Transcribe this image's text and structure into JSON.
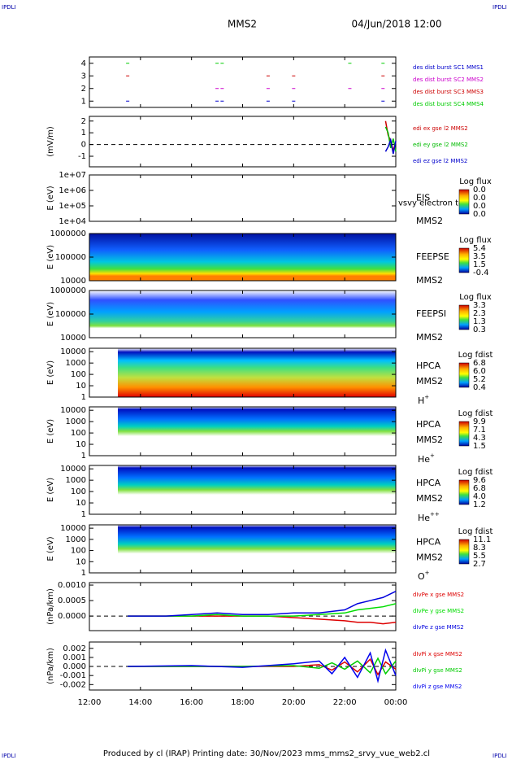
{
  "header": {
    "corner": "IPDLI",
    "mission": "MMS2",
    "date": "04/Jun/2018 12:00"
  },
  "footer": "Produced by cl (IRAP)   Printing date: 30/Nov/2023   mms_mms2_srvy_vue_web2.cl",
  "xlim": [
    12,
    24
  ],
  "xticks": [
    {
      "value": 12,
      "label": "12:00"
    },
    {
      "value": 14,
      "label": "14:00"
    },
    {
      "value": 16,
      "label": "16:00"
    },
    {
      "value": 18,
      "label": "18:00"
    },
    {
      "value": 20,
      "label": "20:00"
    },
    {
      "value": 22,
      "label": "22:00"
    },
    {
      "value": 24,
      "label": "00:00"
    }
  ],
  "chart_data": [
    {
      "type": "events",
      "ylim": [
        0.5,
        4.5
      ],
      "yticks": [
        1,
        2,
        3,
        4
      ],
      "series": [
        {
          "name": "des dist burst SC1 MMS1",
          "color": "#0000cc",
          "row": 1,
          "x": [
            13.5,
            17,
            17.2,
            19,
            20,
            23.5
          ]
        },
        {
          "name": "des dist burst SC2 MMS2",
          "color": "#cc00cc",
          "row": 2,
          "x": [
            17,
            17.2,
            19,
            20,
            22.2,
            23.5
          ]
        },
        {
          "name": "des dist burst SC3 MMS3",
          "color": "#cc0000",
          "row": 3,
          "x": [
            13.5,
            19,
            20,
            23.5
          ]
        },
        {
          "name": "des dist burst SC4 MMS4",
          "color": "#00cc00",
          "row": 4,
          "x": [
            13.5,
            17,
            17.2,
            22.2,
            23.5
          ]
        }
      ]
    },
    {
      "type": "line",
      "ylabel": "(mV/m)",
      "ylim": [
        -1.9,
        2.4
      ],
      "yticks": [
        -1,
        0,
        1,
        2
      ],
      "x": [
        23.6,
        23.7,
        23.8,
        23.9,
        24
      ],
      "series": [
        {
          "name": "edi ex gse l2 MMS2",
          "color": "#cc0000",
          "values": [
            2,
            0.8,
            0.3,
            -0.5,
            0.2
          ]
        },
        {
          "name": "edi ey gse l2 MMS2",
          "color": "#00bb00",
          "values": [
            1.5,
            1,
            -0.3,
            0.5,
            -0.6
          ]
        },
        {
          "name": "edi ez gse l2 MMS2",
          "color": "#0000cc",
          "values": [
            -0.6,
            -0.2,
            0.4,
            -0.8,
            0.3
          ]
        }
      ]
    },
    {
      "type": "spectrogram",
      "ylabel": "E (eV)",
      "log": true,
      "ylim": [
        10000,
        10000000
      ],
      "yticks": [
        {
          "value": 10000,
          "label": "1e+04"
        },
        {
          "value": 100000,
          "label": "1e+05"
        },
        {
          "value": 1000000,
          "label": "1e+06"
        },
        {
          "value": 10000000,
          "label": "1e+07"
        }
      ],
      "instrument": "EIS",
      "overlay": "vsvy electron to",
      "probe": "MMS2",
      "cbar_title": "Log flux",
      "cbar": [
        "0.0",
        "0.0",
        "0.0",
        "0.0"
      ],
      "fill": "none"
    },
    {
      "type": "spectrogram",
      "ylabel": "E (eV)",
      "log": true,
      "ylim": [
        10000,
        1000000
      ],
      "yticks": [
        10000,
        100000,
        1000000
      ],
      "instrument": "FEEPSE",
      "probe": "MMS2",
      "cbar_title": "Log flux",
      "cbar": [
        "5.4",
        "3.5",
        "1.5",
        "-0.4"
      ],
      "fill": "feepse"
    },
    {
      "type": "spectrogram",
      "ylabel": "E (eV)",
      "log": true,
      "ylim": [
        10000,
        1000000
      ],
      "yticks": [
        10000,
        100000,
        1000000
      ],
      "instrument": "FEEPSI",
      "probe": "MMS2",
      "cbar_title": "Log flux",
      "cbar": [
        "3.3",
        "2.3",
        "1.3",
        "0.3"
      ],
      "fill": "feepsi"
    },
    {
      "type": "spectrogram",
      "ylabel": "E (eV)",
      "log": true,
      "ylim": [
        1,
        20000
      ],
      "yticks": [
        1,
        10,
        100,
        1000,
        10000
      ],
      "instrument": "HPCA",
      "probe": "MMS2",
      "species": "H",
      "sup": "+",
      "cbar_title": "Log fdist",
      "cbar": [
        "6.8",
        "6.0",
        "5.2",
        "0.4"
      ],
      "fill": "hpca"
    },
    {
      "type": "spectrogram",
      "ylabel": "E (eV)",
      "log": true,
      "ylim": [
        1,
        20000
      ],
      "yticks": [
        1,
        10,
        100,
        1000,
        10000
      ],
      "instrument": "HPCA",
      "probe": "MMS2",
      "species": "He",
      "sup": "+",
      "cbar_title": "Log fdist",
      "cbar": [
        "9.9",
        "7.1",
        "4.3",
        "1.5"
      ],
      "fill": "hpca2"
    },
    {
      "type": "spectrogram",
      "ylabel": "E (eV)",
      "log": true,
      "ylim": [
        1,
        20000
      ],
      "yticks": [
        1,
        10,
        100,
        1000,
        10000
      ],
      "instrument": "HPCA",
      "probe": "MMS2",
      "species": "He",
      "sup": "++",
      "cbar_title": "Log fdist",
      "cbar": [
        "9.6",
        "6.8",
        "4.0",
        "1.2"
      ],
      "fill": "hpca2"
    },
    {
      "type": "spectrogram",
      "ylabel": "E (eV)",
      "log": true,
      "ylim": [
        1,
        20000
      ],
      "yticks": [
        1,
        10,
        100,
        1000,
        10000
      ],
      "instrument": "HPCA",
      "probe": "MMS2",
      "species": "O",
      "sup": "+",
      "cbar_title": "Log fdist",
      "cbar": [
        "11.1",
        "8.3",
        "5.5",
        "2.7"
      ],
      "fill": "hpca2"
    },
    {
      "type": "line",
      "ylabel": "(nPa/km)",
      "ylim": [
        -0.00047,
        0.00108
      ],
      "yticks": [
        {
          "value": 0,
          "label": "0.0000"
        },
        0.0005,
        {
          "value": 0.001,
          "label": "0.0010"
        }
      ],
      "x": [
        13.5,
        15,
        16,
        17,
        18,
        19,
        20,
        21,
        22,
        22.5,
        23,
        23.5,
        24
      ],
      "series": [
        {
          "name": "dIvPe x gse MMS2",
          "color": "#dd0000",
          "values": [
            0,
            0,
            0,
            0,
            0,
            0,
            -5e-05,
            -0.0001,
            -0.00015,
            -0.0002,
            -0.0002,
            -0.00025,
            -0.0002
          ]
        },
        {
          "name": "dIvPe y gse MMS2",
          "color": "#00dd00",
          "values": [
            0,
            0,
            0,
            5e-05,
            0,
            0,
            0,
            5e-05,
            0.0001,
            0.0002,
            0.00025,
            0.0003,
            0.0004
          ]
        },
        {
          "name": "dIvPe z gse MMS2",
          "color": "#0000dd",
          "values": [
            0,
            0,
            5e-05,
            0.0001,
            5e-05,
            5e-05,
            0.0001,
            0.0001,
            0.0002,
            0.0004,
            0.0005,
            0.0006,
            0.0008
          ]
        }
      ]
    },
    {
      "type": "line",
      "ylabel": "(nPa/km)",
      "ylim": [
        -0.0026,
        0.0027
      ],
      "yticks": [
        -0.002,
        -0.001,
        {
          "value": 0,
          "label": "0.000"
        },
        0.001,
        0.002
      ],
      "x": [
        13.5,
        16,
        18,
        20,
        21,
        21.5,
        22,
        22.5,
        23,
        23.3,
        23.6,
        24
      ],
      "series": [
        {
          "name": "dIvPi x gse MMS2",
          "color": "#dd0000",
          "values": [
            0,
            0,
            0,
            0,
            0.0002,
            -0.0004,
            0.0005,
            -0.0006,
            0.0008,
            -0.0009,
            0.0005,
            -0.0003
          ]
        },
        {
          "name": "dIvPi y gse MMS2",
          "color": "#00cc00",
          "values": [
            0,
            0,
            0,
            0.0001,
            -0.0002,
            0.0004,
            -0.0003,
            0.0006,
            -0.0007,
            0.0009,
            -0.0008,
            0.0006
          ]
        },
        {
          "name": "dIvPi z gse MMS2",
          "color": "#0000ee",
          "values": [
            0,
            0.0001,
            -0.0001,
            0.0003,
            0.0006,
            -0.0008,
            0.001,
            -0.0012,
            0.0015,
            -0.0016,
            0.0018,
            -0.001
          ]
        }
      ]
    }
  ]
}
